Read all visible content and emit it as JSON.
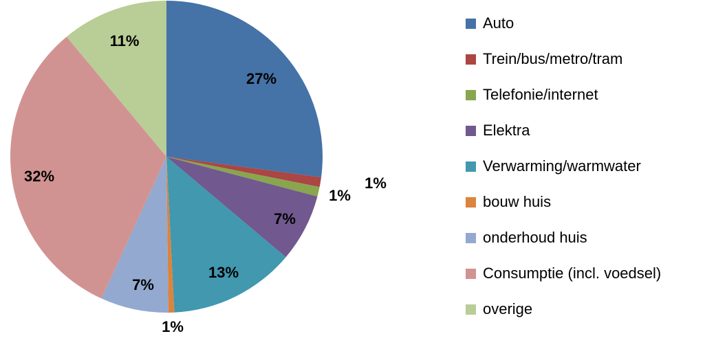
{
  "chart_data": {
    "type": "pie",
    "slices": [
      {
        "label": "Auto",
        "value": 27,
        "value_label": "27%",
        "color": "#4572A7"
      },
      {
        "label": "Trein/bus/metro/tram",
        "value": 1,
        "value_label": "1%",
        "color": "#AA4643"
      },
      {
        "label": "Telefonie/internet",
        "value": 1,
        "value_label": "1%",
        "color": "#89A54E"
      },
      {
        "label": "Elektra",
        "value": 7,
        "value_label": "7%",
        "color": "#71588F"
      },
      {
        "label": "Verwarming/warmwater",
        "value": 13,
        "value_label": "13%",
        "color": "#4198AF"
      },
      {
        "label": "bouw huis",
        "value": 0.6,
        "value_label": "1%",
        "color": "#DB843D"
      },
      {
        "label": "onderhoud huis",
        "value": 7,
        "value_label": "7%",
        "color": "#93A9CF"
      },
      {
        "label": "Consumptie (incl. voedsel)",
        "value": 32,
        "value_label": "32%",
        "color": "#D19392"
      },
      {
        "label": "overige",
        "value": 11,
        "value_label": "11%",
        "color": "#B9CD96"
      }
    ],
    "legend_position": "right"
  }
}
